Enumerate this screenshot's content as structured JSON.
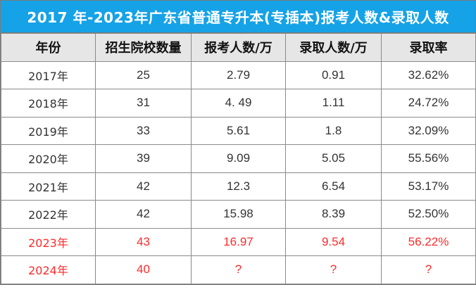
{
  "title": "2017 年-2023年广东省普通专升本(专插本)报考人数&录取人数",
  "columns": [
    "年份",
    "招生院校数量",
    "报考人数/万",
    "录取人数/万",
    "录取率"
  ],
  "rows": [
    {
      "year": "2017年",
      "schools": "25",
      "applicants": "2.79",
      "admitted": "0.91",
      "rate": "32.62%",
      "highlight": false
    },
    {
      "year": "2018年",
      "schools": "31",
      "applicants": "4. 49",
      "admitted": "1.11",
      "rate": "24.72%",
      "highlight": false
    },
    {
      "year": "2019年",
      "schools": "33",
      "applicants": "5.61",
      "admitted": "1.8",
      "rate": "32.09%",
      "highlight": false
    },
    {
      "year": "2020年",
      "schools": "39",
      "applicants": "9.09",
      "admitted": "5.05",
      "rate": "55.56%",
      "highlight": false
    },
    {
      "year": "2021年",
      "schools": "42",
      "applicants": "12.3",
      "admitted": "6.54",
      "rate": "53.17%",
      "highlight": false
    },
    {
      "year": "2022年",
      "schools": "42",
      "applicants": "15.98",
      "admitted": "8.39",
      "rate": "52.50%",
      "highlight": false
    },
    {
      "year": "2023年",
      "schools": "43",
      "applicants": "16.97",
      "admitted": "9.54",
      "rate": "56.22%",
      "highlight": true
    },
    {
      "year": "2024年",
      "schools": "40",
      "applicants": "?",
      "admitted": "?",
      "rate": "?",
      "highlight": true
    }
  ],
  "colors": {
    "title_bg": "#16a2e6",
    "header_bg": "#e7e6e6",
    "highlight_text": "#ff2a2a",
    "body_text": "#333333"
  }
}
